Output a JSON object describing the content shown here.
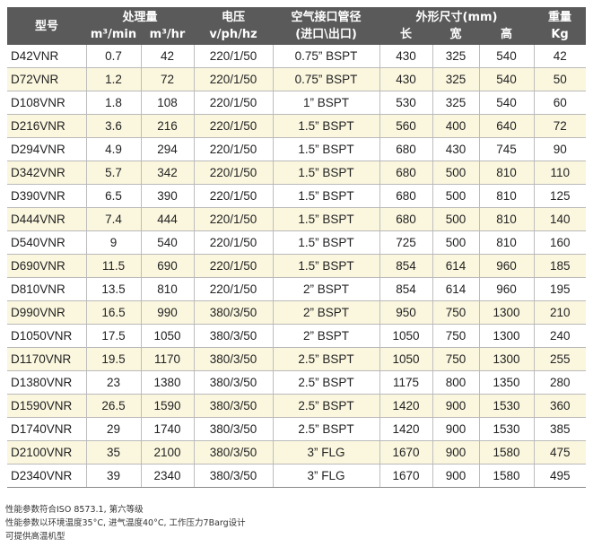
{
  "headers": {
    "model": "型号",
    "capacity": "处理量",
    "capacity_m3min": "m³/min",
    "capacity_m3hr": "m³/hr",
    "voltage": "电压",
    "voltage_unit": "v/ph/hz",
    "pipe": "空气接口管径",
    "pipe_sub": "(进口\\出口)",
    "dims": "外形尺寸(mm)",
    "dim_l": "长",
    "dim_w": "宽",
    "dim_h": "高",
    "weight": "重量",
    "weight_unit": "Kg"
  },
  "rows": [
    [
      "D42VNR",
      "0.7",
      "42",
      "220/1/50",
      "0.75” BSPT",
      "430",
      "325",
      "540",
      "42"
    ],
    [
      "D72VNR",
      "1.2",
      "72",
      "220/1/50",
      "0.75” BSPT",
      "430",
      "325",
      "540",
      "50"
    ],
    [
      "D108VNR",
      "1.8",
      "108",
      "220/1/50",
      "1” BSPT",
      "530",
      "325",
      "540",
      "60"
    ],
    [
      "D216VNR",
      "3.6",
      "216",
      "220/1/50",
      "1.5” BSPT",
      "560",
      "400",
      "640",
      "72"
    ],
    [
      "D294VNR",
      "4.9",
      "294",
      "220/1/50",
      "1.5” BSPT",
      "680",
      "430",
      "745",
      "90"
    ],
    [
      "D342VNR",
      "5.7",
      "342",
      "220/1/50",
      "1.5” BSPT",
      "680",
      "500",
      "810",
      "110"
    ],
    [
      "D390VNR",
      "6.5",
      "390",
      "220/1/50",
      "1.5” BSPT",
      "680",
      "500",
      "810",
      "125"
    ],
    [
      "D444VNR",
      "7.4",
      "444",
      "220/1/50",
      "1.5” BSPT",
      "680",
      "500",
      "810",
      "140"
    ],
    [
      "D540VNR",
      "9",
      "540",
      "220/1/50",
      "1.5” BSPT",
      "725",
      "500",
      "810",
      "160"
    ],
    [
      "D690VNR",
      "11.5",
      "690",
      "220/1/50",
      "1.5” BSPT",
      "854",
      "614",
      "960",
      "185"
    ],
    [
      "D810VNR",
      "13.5",
      "810",
      "220/1/50",
      "2” BSPT",
      "854",
      "614",
      "960",
      "195"
    ],
    [
      "D990VNR",
      "16.5",
      "990",
      "380/3/50",
      "2” BSPT",
      "950",
      "750",
      "1300",
      "210"
    ],
    [
      "D1050VNR",
      "17.5",
      "1050",
      "380/3/50",
      "2” BSPT",
      "1050",
      "750",
      "1300",
      "240"
    ],
    [
      "D1170VNR",
      "19.5",
      "1170",
      "380/3/50",
      "2.5” BSPT",
      "1050",
      "750",
      "1300",
      "255"
    ],
    [
      "D1380VNR",
      "23",
      "1380",
      "380/3/50",
      "2.5” BSPT",
      "1175",
      "800",
      "1350",
      "280"
    ],
    [
      "D1590VNR",
      "26.5",
      "1590",
      "380/3/50",
      "2.5” BSPT",
      "1420",
      "900",
      "1530",
      "360"
    ],
    [
      "D1740VNR",
      "29",
      "1740",
      "380/3/50",
      "2.5” BSPT",
      "1420",
      "900",
      "1530",
      "385"
    ],
    [
      "D2100VNR",
      "35",
      "2100",
      "380/3/50",
      "3” FLG",
      "1670",
      "900",
      "1580",
      "475"
    ],
    [
      "D2340VNR",
      "39",
      "2340",
      "380/3/50",
      "3” FLG",
      "1670",
      "900",
      "1580",
      "495"
    ]
  ],
  "notes": [
    "性能参数符合ISO 8573.1, 第六等级",
    "性能参数以环境温度35°C, 进气温度40°C, 工作压力7Barg设计",
    "可提供高温机型"
  ]
}
